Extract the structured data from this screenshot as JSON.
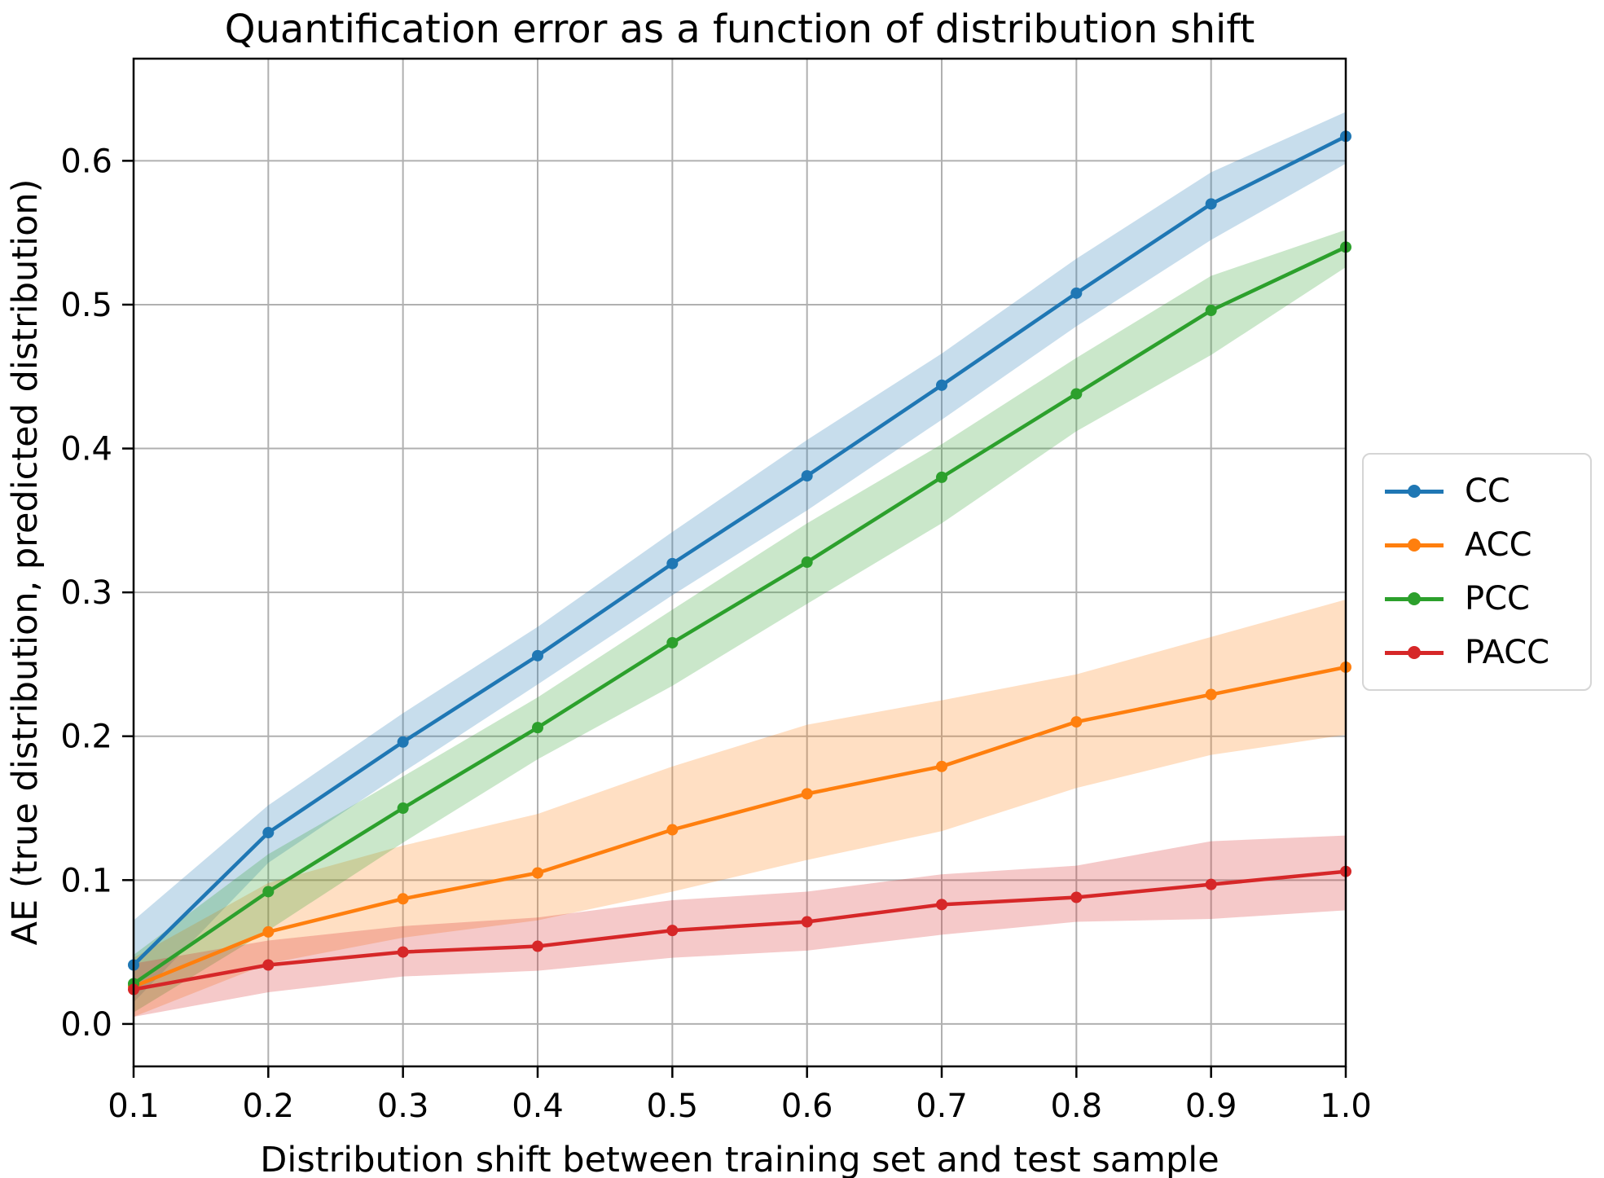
{
  "chart_data": {
    "type": "line",
    "title": "Quantification error as a function of distribution shift",
    "xlabel": "Distribution shift between training set and test sample",
    "ylabel": "AE (true distribution, predicted distribution)",
    "x": [
      0.1,
      0.2,
      0.3,
      0.4,
      0.5,
      0.6,
      0.7,
      0.8,
      0.9,
      1.0
    ],
    "xlim": [
      0.1,
      1.0
    ],
    "ylim": [
      -0.0295,
      0.671
    ],
    "xticks": [
      0.1,
      0.2,
      0.3,
      0.4,
      0.5,
      0.6,
      0.7,
      0.8,
      0.9,
      1.0
    ],
    "yticks": [
      0.0,
      0.1,
      0.2,
      0.3,
      0.4,
      0.5,
      0.6
    ],
    "grid": true,
    "grid_color": "#b0b0b0",
    "frame_color": "#000000",
    "background_color": "#ffffff",
    "legend_position": "right-outside",
    "band_opacity": 0.25,
    "series": [
      {
        "name": "CC",
        "color": "#1f77b4",
        "values": [
          0.041,
          0.133,
          0.196,
          0.256,
          0.32,
          0.381,
          0.444,
          0.508,
          0.57,
          0.617
        ],
        "band_lower": [
          0.015,
          0.112,
          0.175,
          0.236,
          0.298,
          0.357,
          0.42,
          0.485,
          0.545,
          0.598
        ],
        "band_upper": [
          0.072,
          0.152,
          0.216,
          0.276,
          0.342,
          0.406,
          0.466,
          0.532,
          0.592,
          0.634
        ]
      },
      {
        "name": "ACC",
        "color": "#ff7f0e",
        "values": [
          0.026,
          0.064,
          0.087,
          0.105,
          0.135,
          0.16,
          0.179,
          0.21,
          0.229,
          0.248
        ],
        "band_lower": [
          0.005,
          0.042,
          0.06,
          0.072,
          0.092,
          0.114,
          0.134,
          0.164,
          0.187,
          0.201
        ],
        "band_upper": [
          0.046,
          0.098,
          0.124,
          0.146,
          0.179,
          0.208,
          0.225,
          0.243,
          0.269,
          0.295
        ]
      },
      {
        "name": "PCC",
        "color": "#2ca02c",
        "values": [
          0.028,
          0.092,
          0.15,
          0.206,
          0.265,
          0.321,
          0.38,
          0.438,
          0.496,
          0.54
        ],
        "band_lower": [
          0.008,
          0.065,
          0.126,
          0.184,
          0.235,
          0.292,
          0.348,
          0.412,
          0.465,
          0.526
        ],
        "band_upper": [
          0.048,
          0.118,
          0.172,
          0.227,
          0.288,
          0.348,
          0.403,
          0.463,
          0.52,
          0.552
        ]
      },
      {
        "name": "PACC",
        "color": "#d62728",
        "values": [
          0.024,
          0.041,
          0.05,
          0.054,
          0.065,
          0.071,
          0.083,
          0.088,
          0.097,
          0.106
        ],
        "band_lower": [
          0.005,
          0.022,
          0.033,
          0.037,
          0.046,
          0.051,
          0.062,
          0.071,
          0.073,
          0.079
        ],
        "band_upper": [
          0.042,
          0.058,
          0.068,
          0.074,
          0.086,
          0.092,
          0.104,
          0.11,
          0.127,
          0.131
        ]
      }
    ]
  }
}
